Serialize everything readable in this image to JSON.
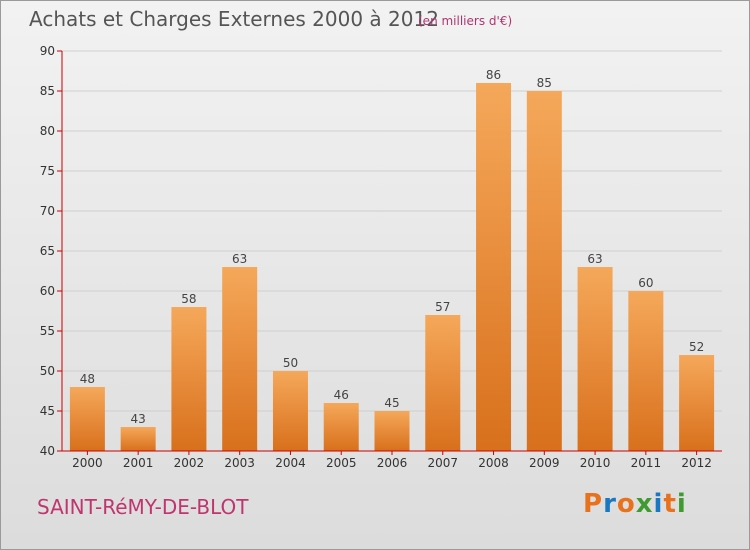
{
  "header": {
    "title": "Achats et Charges Externes 2000 à 2012",
    "unit": "(en milliers d'€)"
  },
  "footer": {
    "commune": "SAINT-RéMY-DE-BLOT",
    "brand": "Proxiti"
  },
  "colors": {
    "bar_top": "#f5a85a",
    "bar_bottom": "#d8701c",
    "axis": "#cc0000",
    "grid": "#cfcfcf",
    "brand_letters": [
      "#e8711d",
      "#1a78c2",
      "#e8711d",
      "#3f9b2f",
      "#1a78c2",
      "#e8711d",
      "#3f9b2f"
    ]
  },
  "chart_data": {
    "type": "bar",
    "title": "Achats et Charges Externes 2000 à 2012",
    "categories": [
      "2000",
      "2001",
      "2002",
      "2003",
      "2004",
      "2005",
      "2006",
      "2007",
      "2008",
      "2009",
      "2010",
      "2011",
      "2012"
    ],
    "values": [
      48,
      43,
      58,
      63,
      50,
      46,
      45,
      57,
      86,
      85,
      63,
      60,
      52
    ],
    "ylim": [
      40,
      90
    ],
    "yticks": [
      40,
      45,
      50,
      55,
      60,
      65,
      70,
      75,
      80,
      85,
      90
    ],
    "grid": true,
    "xlabel": "",
    "ylabel": ""
  }
}
